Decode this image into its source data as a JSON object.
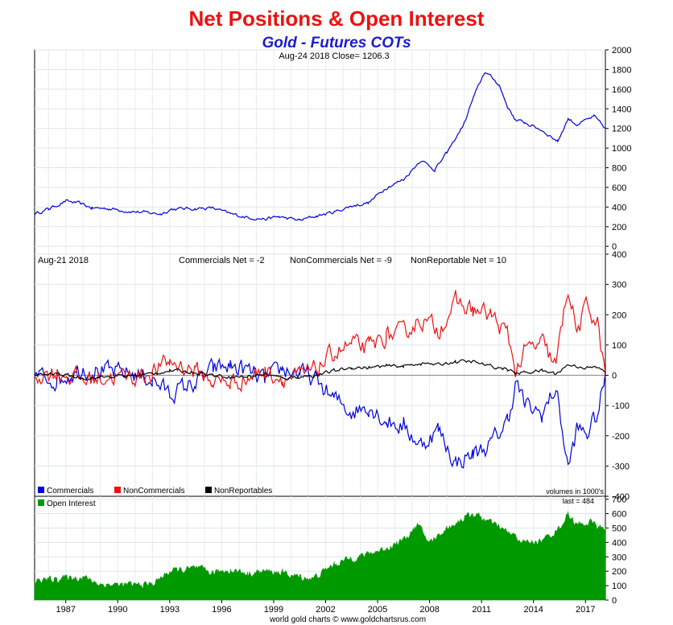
{
  "chart_data": [
    {
      "type": "line",
      "title": "Net Positions & Open Interest",
      "subtitle": "Gold - Futures COTs",
      "panel_header": "Aug-24  2018   Close= 1206.3",
      "x_range": [
        1985.7,
        2018.65
      ],
      "x_ticks": [
        "1987",
        "1990",
        "1993",
        "1996",
        "1999",
        "2002",
        "2005",
        "2008",
        "2011",
        "2014",
        "2017"
      ],
      "y_range": [
        -80,
        2000
      ],
      "y_ticks": [
        "0",
        "200",
        "400",
        "600",
        "800",
        "1000",
        "1200",
        "1400",
        "1600",
        "1800",
        "2000"
      ],
      "grid": true,
      "series": [
        {
          "color": "#0000dd",
          "points": [
            [
              1985.7,
              330
            ],
            [
              1986.5,
              380
            ],
            [
              1987.5,
              460
            ],
            [
              1988.2,
              440
            ],
            [
              1989,
              390
            ],
            [
              1990,
              385
            ],
            [
              1991,
              360
            ],
            [
              1992,
              345
            ],
            [
              1993,
              330
            ],
            [
              1993.6,
              380
            ],
            [
              1995,
              385
            ],
            [
              1996,
              390
            ],
            [
              1997,
              330
            ],
            [
              1998,
              295
            ],
            [
              1999,
              278
            ],
            [
              1999.8,
              300
            ],
            [
              2001,
              265
            ],
            [
              2002,
              310
            ],
            [
              2003,
              350
            ],
            [
              2004,
              410
            ],
            [
              2005,
              445
            ],
            [
              2006,
              600
            ],
            [
              2007,
              680
            ],
            [
              2008,
              880
            ],
            [
              2008.8,
              780
            ],
            [
              2009.5,
              950
            ],
            [
              2010.5,
              1250
            ],
            [
              2011,
              1500
            ],
            [
              2011.7,
              1780
            ],
            [
              2012.5,
              1650
            ],
            [
              2013,
              1420
            ],
            [
              2013.5,
              1280
            ],
            [
              2014,
              1260
            ],
            [
              2015,
              1180
            ],
            [
              2015.9,
              1070
            ],
            [
              2016.5,
              1300
            ],
            [
              2017,
              1240
            ],
            [
              2018,
              1320
            ],
            [
              2018.65,
              1200
            ]
          ]
        }
      ]
    },
    {
      "type": "line",
      "panel_header": {
        "date": "Aug-21  2018",
        "commercials_net": "Commercials Net = -2",
        "noncommercials_net": "NonCommercials Net = -9",
        "nonreportable_net": "NonReportable Net = 10"
      },
      "x_range": [
        1985.7,
        2018.65
      ],
      "y_range": [
        -400,
        400
      ],
      "y_ticks": [
        "-400",
        "-300",
        "-200",
        "-100",
        "0",
        "100",
        "200",
        "300",
        "400"
      ],
      "grid": true,
      "legend": [
        "Commercials",
        "NonCommercials",
        "NonReportables"
      ],
      "legend_position": "bottom-left",
      "note": "volumes in 1000's",
      "series": [
        {
          "name": "Commercials",
          "color": "#0000dd",
          "points": [
            [
              1985.7,
              0
            ],
            [
              1987,
              -15
            ],
            [
              1988.5,
              25
            ],
            [
              1990,
              10
            ],
            [
              1991.5,
              5
            ],
            [
              1992.5,
              -15
            ],
            [
              1993.5,
              -60
            ],
            [
              1995,
              -25
            ],
            [
              1996,
              20
            ],
            [
              1997,
              30
            ],
            [
              1998,
              15
            ],
            [
              1999,
              -20
            ],
            [
              2000,
              20
            ],
            [
              2001,
              10
            ],
            [
              2002,
              -20
            ],
            [
              2003,
              -80
            ],
            [
              2004,
              -120
            ],
            [
              2005,
              -100
            ],
            [
              2006,
              -150
            ],
            [
              2007,
              -170
            ],
            [
              2008,
              -230
            ],
            [
              2009,
              -180
            ],
            [
              2010,
              -290
            ],
            [
              2011,
              -260
            ],
            [
              2012,
              -230
            ],
            [
              2013,
              -150
            ],
            [
              2013.5,
              -20
            ],
            [
              2014,
              -100
            ],
            [
              2015,
              -130
            ],
            [
              2015.8,
              -40
            ],
            [
              2016.5,
              -310
            ],
            [
              2017,
              -180
            ],
            [
              2017.6,
              -190
            ],
            [
              2018.2,
              -130
            ],
            [
              2018.65,
              -2
            ]
          ]
        },
        {
          "name": "NonCommercials",
          "color": "#ee1111",
          "points": [
            [
              1985.7,
              0
            ],
            [
              1987,
              10
            ],
            [
              1988.5,
              -15
            ],
            [
              1990,
              -5
            ],
            [
              1991.5,
              -5
            ],
            [
              1992.5,
              10
            ],
            [
              1993.5,
              45
            ],
            [
              1995,
              15
            ],
            [
              1996,
              -20
            ],
            [
              1997,
              -25
            ],
            [
              1998,
              -10
            ],
            [
              1999,
              15
            ],
            [
              2000,
              -10
            ],
            [
              2001,
              -5
            ],
            [
              2002,
              20
            ],
            [
              2003,
              75
            ],
            [
              2004,
              100
            ],
            [
              2005,
              90
            ],
            [
              2006,
              130
            ],
            [
              2007,
              140
            ],
            [
              2008,
              185
            ],
            [
              2009,
              150
            ],
            [
              2010,
              240
            ],
            [
              2011,
              215
            ],
            [
              2012,
              200
            ],
            [
              2013,
              135
            ],
            [
              2013.5,
              10
            ],
            [
              2014,
              80
            ],
            [
              2015,
              105
            ],
            [
              2015.8,
              30
            ],
            [
              2016.5,
              295
            ],
            [
              2017,
              140
            ],
            [
              2017.6,
              230
            ],
            [
              2018.2,
              170
            ],
            [
              2018.65,
              -9
            ]
          ]
        },
        {
          "name": "NonReportables",
          "color": "#000000",
          "points": [
            [
              1985.7,
              0
            ],
            [
              1987,
              5
            ],
            [
              1988.5,
              -10
            ],
            [
              1990,
              -5
            ],
            [
              1991.5,
              0
            ],
            [
              1992.5,
              5
            ],
            [
              1993.5,
              15
            ],
            [
              1995,
              10
            ],
            [
              1996,
              0
            ],
            [
              1997,
              -5
            ],
            [
              1998,
              -5
            ],
            [
              1999,
              5
            ],
            [
              2000,
              -10
            ],
            [
              2001,
              -5
            ],
            [
              2002,
              0
            ],
            [
              2003,
              15
            ],
            [
              2004,
              25
            ],
            [
              2005,
              25
            ],
            [
              2006,
              30
            ],
            [
              2007,
              30
            ],
            [
              2008,
              40
            ],
            [
              2009,
              35
            ],
            [
              2010,
              45
            ],
            [
              2011,
              45
            ],
            [
              2012,
              30
            ],
            [
              2013,
              20
            ],
            [
              2013.5,
              5
            ],
            [
              2014,
              10
            ],
            [
              2015,
              15
            ],
            [
              2015.8,
              5
            ],
            [
              2016.5,
              35
            ],
            [
              2017,
              30
            ],
            [
              2017.6,
              25
            ],
            [
              2018.2,
              25
            ],
            [
              2018.65,
              10
            ]
          ]
        }
      ]
    },
    {
      "type": "area",
      "x_range": [
        1985.7,
        2018.65
      ],
      "y_range": [
        0,
        720
      ],
      "y_ticks": [
        "0",
        "100",
        "200",
        "300",
        "400",
        "500",
        "600",
        "700"
      ],
      "grid": true,
      "legend": [
        "Open Interest"
      ],
      "legend_position": "top-left",
      "last_label": "last = 484",
      "series": [
        {
          "name": "Open Interest",
          "color": "#009900",
          "points": [
            [
              1985.7,
              130
            ],
            [
              1987,
              150
            ],
            [
              1988.5,
              160
            ],
            [
              1989.5,
              110
            ],
            [
              1991,
              105
            ],
            [
              1992.5,
              110
            ],
            [
              1993.5,
              200
            ],
            [
              1995,
              220
            ],
            [
              1996,
              190
            ],
            [
              1997,
              210
            ],
            [
              1998,
              185
            ],
            [
              1999,
              200
            ],
            [
              2000,
              190
            ],
            [
              2001,
              160
            ],
            [
              2001.8,
              150
            ],
            [
              2003,
              250
            ],
            [
              2004,
              290
            ],
            [
              2005,
              320
            ],
            [
              2006,
              360
            ],
            [
              2007,
              420
            ],
            [
              2007.8,
              520
            ],
            [
              2008.5,
              400
            ],
            [
              2009.5,
              500
            ],
            [
              2010.5,
              570
            ],
            [
              2011,
              600
            ],
            [
              2012,
              540
            ],
            [
              2013,
              470
            ],
            [
              2014,
              400
            ],
            [
              2015,
              410
            ],
            [
              2016,
              500
            ],
            [
              2016.5,
              600
            ],
            [
              2017,
              520
            ],
            [
              2017.8,
              540
            ],
            [
              2018.65,
              484
            ]
          ]
        }
      ]
    }
  ],
  "footer_credit": "world gold charts © www.goldchartsrus.com"
}
